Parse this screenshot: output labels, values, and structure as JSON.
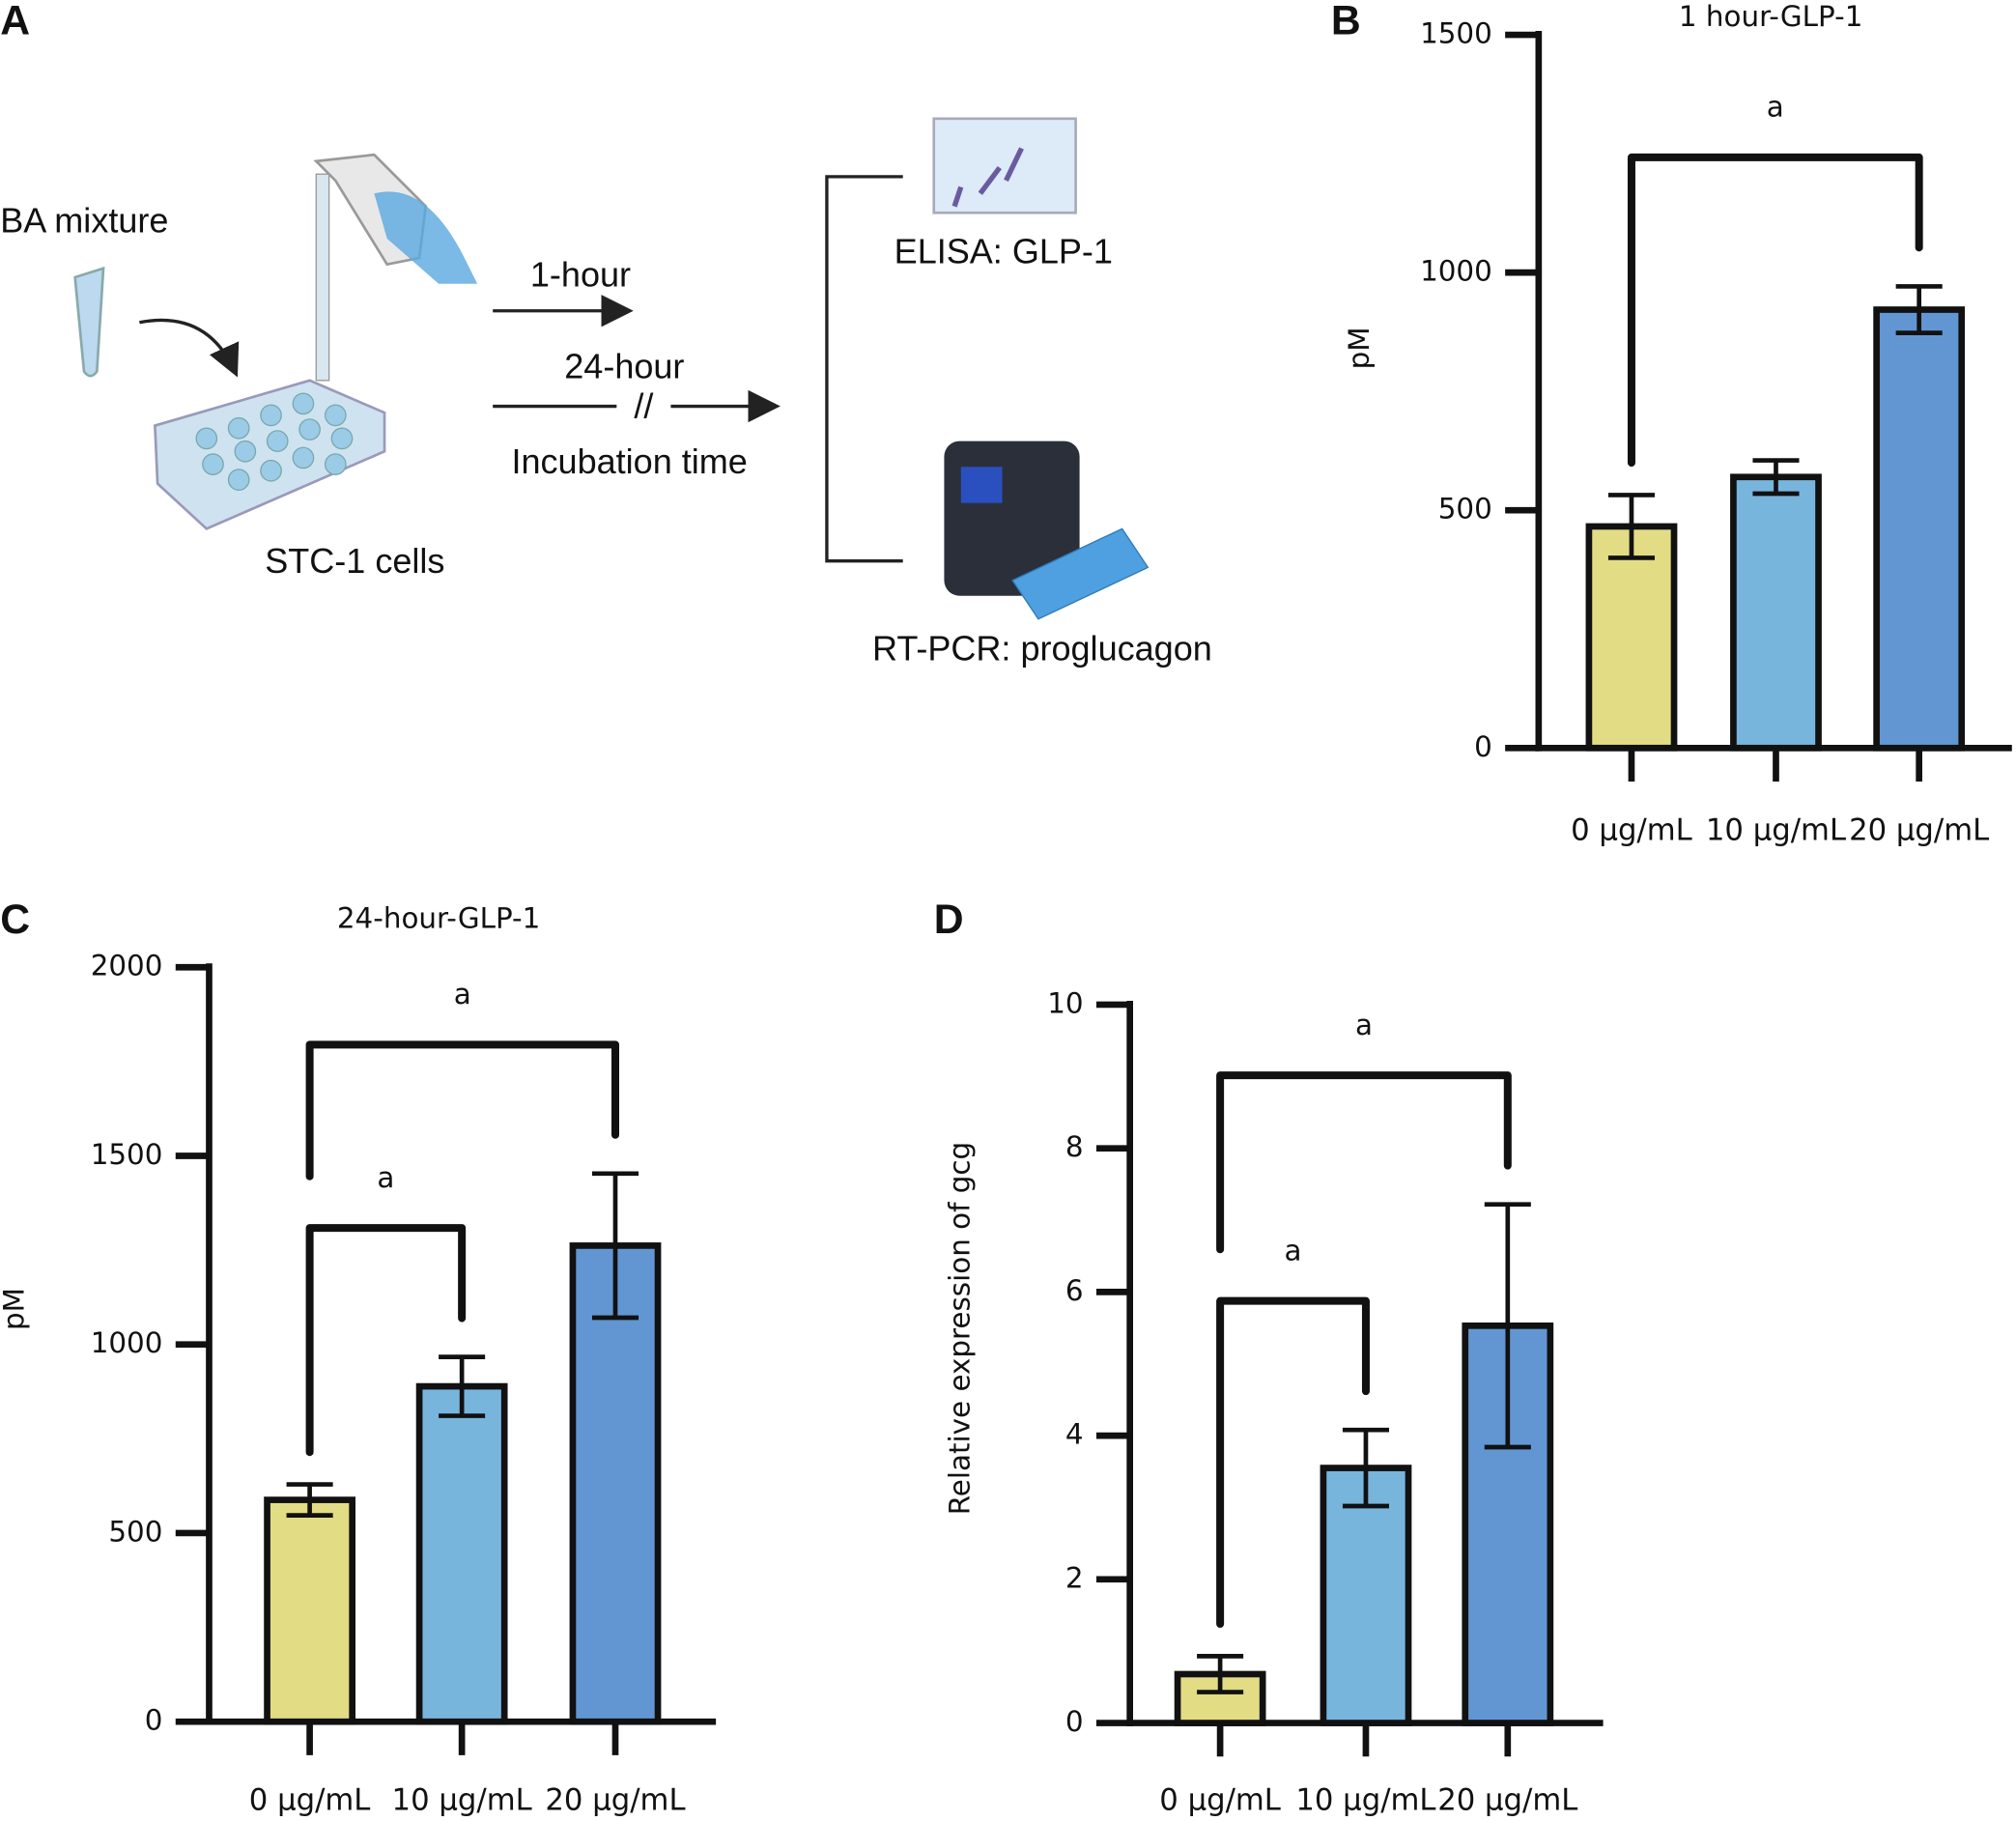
{
  "panels": [
    "A",
    "B",
    "C",
    "D"
  ],
  "diagram": {
    "ba_mixture": "BA mixture",
    "cells": "STC-1 cells",
    "short_time": "1-hour",
    "long_time": "24-hour",
    "break_mark": "//",
    "incubation": "Incubation time",
    "elisa": "ELISA: GLP-1",
    "rtpcr": "RT-PCR: proglucagon"
  },
  "chart_data": [
    {
      "type": "bar",
      "title": "1 hour-GLP-1",
      "y_label": "pM",
      "categories": [
        "0 μg/mL",
        "10 μg/mL",
        "20 μg/mL"
      ],
      "values": [
        466,
        570,
        922
      ],
      "errors": [
        66,
        35,
        49
      ],
      "colors": [
        "#e2dc84",
        "#77b5dd",
        "#6196d2"
      ],
      "ylim": [
        0,
        1500
      ],
      "yticks": [
        0,
        500,
        1000,
        1500
      ],
      "annotations": [
        {
          "label": "a",
          "from": 0,
          "to": 2
        }
      ]
    },
    {
      "type": "bar",
      "title": "24-hour-GLP-1",
      "y_label": "pM",
      "categories": [
        "0 μg/mL",
        "10 μg/mL",
        "20 μg/mL"
      ],
      "values": [
        588,
        889,
        1262
      ],
      "errors": [
        41,
        78,
        191
      ],
      "colors": [
        "#e2dc84",
        "#77b5dd",
        "#6196d2"
      ],
      "ylim": [
        0,
        2000
      ],
      "yticks": [
        0,
        500,
        1000,
        1500,
        2000
      ],
      "annotations": [
        {
          "label": "a",
          "from": 0,
          "to": 1
        },
        {
          "label": "a",
          "from": 0,
          "to": 2
        }
      ]
    },
    {
      "type": "bar",
      "y_label": "Relative expression of gcg",
      "categories": [
        "0 μg/mL",
        "10 μg/mL",
        "20 μg/mL"
      ],
      "values": [
        0.68,
        3.55,
        5.53
      ],
      "errors": [
        0.25,
        0.53,
        1.69
      ],
      "colors": [
        "#e2dc84",
        "#77b5dd",
        "#6196d2"
      ],
      "ylim": [
        0,
        10
      ],
      "yticks": [
        0,
        2,
        4,
        6,
        8,
        10
      ],
      "annotations": [
        {
          "label": "a",
          "from": 0,
          "to": 1
        },
        {
          "label": "a",
          "from": 0,
          "to": 2
        }
      ]
    }
  ]
}
